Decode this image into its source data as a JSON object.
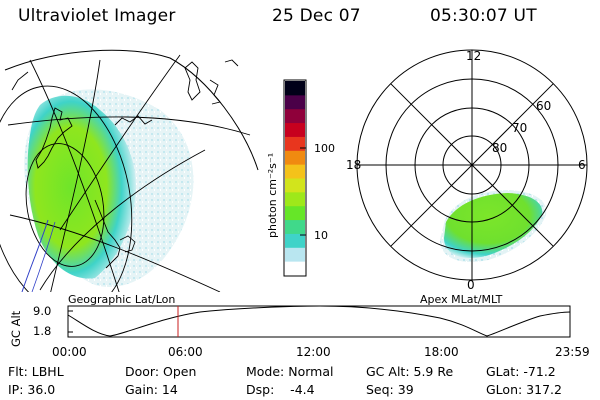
{
  "header": {
    "title": "Ultraviolet Imager",
    "date": "25 Dec 07",
    "time": "05:30:07 UT"
  },
  "colorbar": {
    "unit_label": "photon cm⁻²s⁻¹",
    "ticks": [
      "100",
      "10"
    ],
    "scale": "log",
    "colors": [
      "#ffffff",
      "#b9e6f0",
      "#3fd3c8",
      "#40d98a",
      "#66e628",
      "#9ee81a",
      "#d2e41c",
      "#f4c21a",
      "#f08a10",
      "#e8361e",
      "#c7001e",
      "#8f003a",
      "#4a0048",
      "#000018"
    ]
  },
  "left_panel": {
    "caption": "Geographic Lat/Lon"
  },
  "right_panel": {
    "caption": "Apex MLat/MLT",
    "mlt_labels": {
      "top": "12",
      "left": "18",
      "right": "6",
      "bottom": "0"
    },
    "lat_labels": [
      "60",
      "70",
      "80"
    ]
  },
  "altitude_plot": {
    "axis_label": "GC Alt",
    "y_ticks": [
      "9.0",
      "1.8"
    ],
    "x_ticks": [
      "00:00",
      "06:00",
      "12:00",
      "18:00",
      "23:59"
    ],
    "current_time_marker": "05:30",
    "marker_color": "#c81e1e"
  },
  "info": {
    "flt": "Flt: LBHL",
    "ip": "IP: 36.0",
    "door": "Door: Open",
    "gain": "Gain: 14",
    "mode": "Mode: Normal",
    "dsp": "Dsp:    -4.4",
    "gc_alt": "GC Alt: 5.9 Re",
    "seq": "Seq: 39",
    "glat": "GLat: -71.2",
    "glon": "GLon: 317.2"
  }
}
